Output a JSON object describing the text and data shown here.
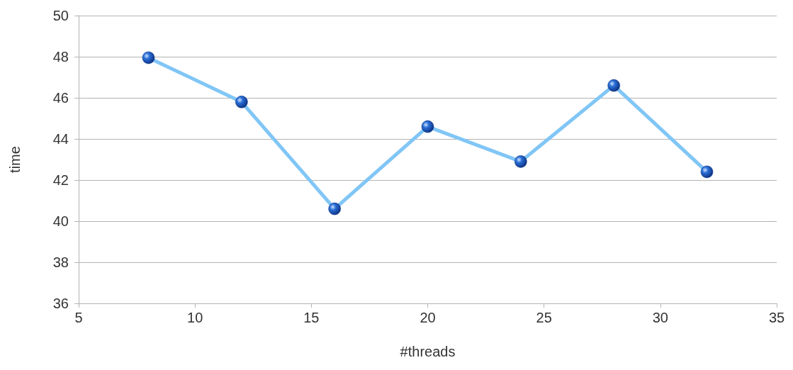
{
  "chart_data": {
    "type": "line",
    "xlabel": "#threads",
    "ylabel": "time",
    "x": [
      8,
      12,
      16,
      20,
      24,
      28,
      32
    ],
    "series": [
      {
        "color": "#80c6f6",
        "values": [
          47.95,
          45.8,
          40.6,
          44.6,
          42.9,
          46.6,
          42.4
        ]
      }
    ],
    "xlim": [
      5,
      35
    ],
    "xticks": [
      5,
      10,
      15,
      20,
      25,
      30,
      35
    ],
    "ylim": [
      36,
      50
    ],
    "yticks": [
      36,
      38,
      40,
      42,
      44,
      46,
      48,
      50
    ],
    "grid": "y",
    "marker": "circle",
    "line_style": "solid"
  }
}
